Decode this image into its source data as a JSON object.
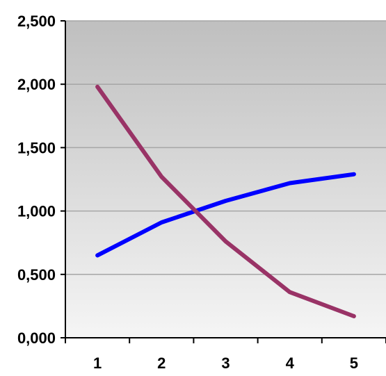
{
  "chart_data": {
    "type": "line",
    "title": "",
    "xlabel": "",
    "ylabel": "",
    "categories": [
      "1",
      "2",
      "3",
      "4",
      "5"
    ],
    "ylim": [
      0,
      2.5
    ],
    "y_ticks": [
      0,
      0.5,
      1.0,
      1.5,
      2.0,
      2.5
    ],
    "y_tick_labels": [
      "0,000",
      "0,500",
      "1,000",
      "1,500",
      "2,000",
      "2,500"
    ],
    "grid": true,
    "legend": "none",
    "plot_background": "vertical gradient from #bfbfbf (top) to #f5f5f5 (bottom)",
    "series": [
      {
        "color": "#0000ff",
        "values": [
          0.65,
          0.91,
          1.08,
          1.22,
          1.29
        ]
      },
      {
        "color": "#993366",
        "values": [
          1.98,
          1.27,
          0.76,
          0.36,
          0.17
        ]
      }
    ]
  }
}
